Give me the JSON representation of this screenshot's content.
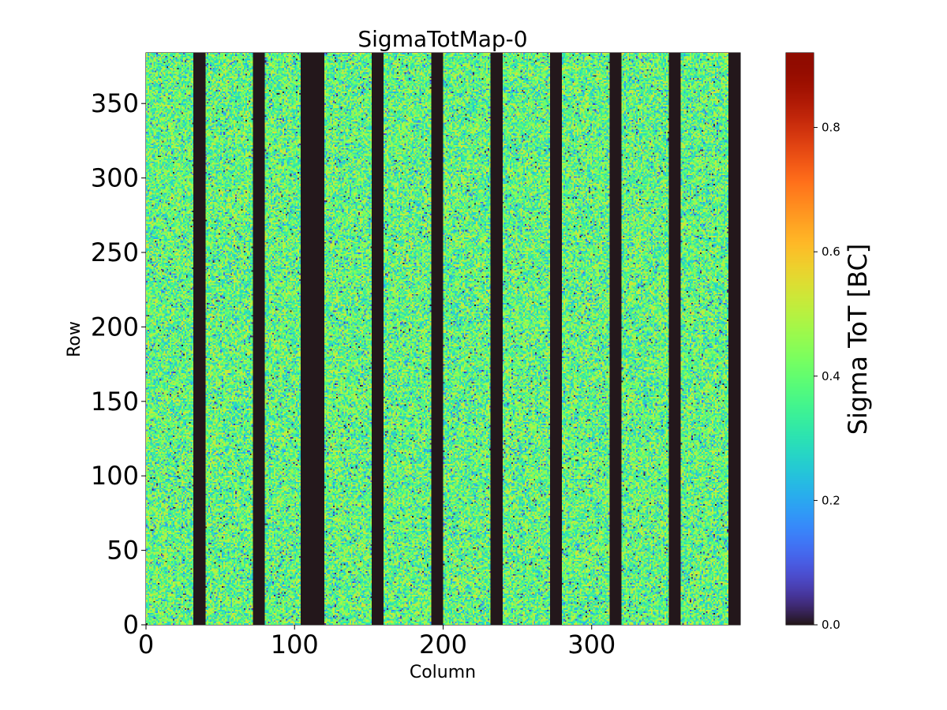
{
  "chart_data": {
    "type": "heatmap",
    "title": "SigmaTotMap-0",
    "xlabel": "Column",
    "ylabel": "Row",
    "colorbar_label": "Sigma ToT [BC]",
    "xlim": [
      0,
      400
    ],
    "ylim": [
      0,
      384
    ],
    "x_ticks": [
      0,
      100,
      200,
      300
    ],
    "y_ticks": [
      0,
      50,
      100,
      150,
      200,
      250,
      300,
      350
    ],
    "colorbar_range": [
      0.0,
      0.92
    ],
    "colorbar_ticks": [
      0.0,
      0.2,
      0.4,
      0.6,
      0.8
    ],
    "colormap": "turbo",
    "value_typical_range": [
      0.25,
      0.55
    ],
    "zero_column_bands": [
      [
        32,
        40
      ],
      [
        72,
        80
      ],
      [
        104,
        120
      ],
      [
        152,
        160
      ],
      [
        192,
        200
      ],
      [
        232,
        240
      ],
      [
        272,
        280
      ],
      [
        312,
        320
      ],
      [
        352,
        360
      ],
      [
        392,
        400
      ]
    ],
    "grid": false
  }
}
